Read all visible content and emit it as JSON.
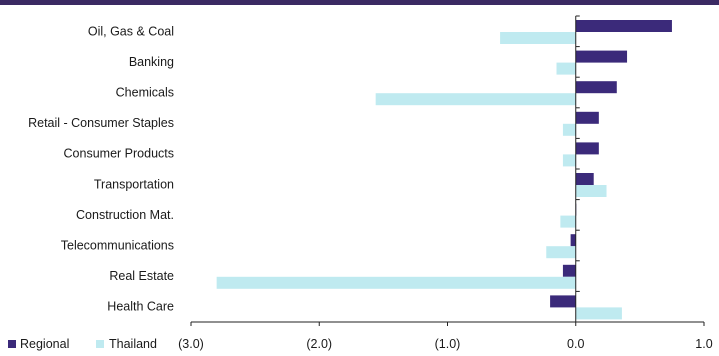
{
  "chart_data": {
    "type": "bar",
    "orientation": "horizontal",
    "categories": [
      "Oil, Gas & Coal",
      "Banking",
      "Chemicals",
      "Retail - Consumer Staples",
      "Consumer Products",
      "Transportation",
      "Construction Mat.",
      "Telecommunications",
      "Real Estate",
      "Health Care"
    ],
    "series": [
      {
        "name": "Regional",
        "color": "#3b2a7a",
        "values": [
          0.75,
          0.4,
          0.32,
          0.18,
          0.18,
          0.14,
          0.0,
          -0.04,
          -0.1,
          -0.2
        ]
      },
      {
        "name": "Thailand",
        "color": "#bfeaf0",
        "values": [
          -0.59,
          -0.15,
          -1.56,
          -0.1,
          -0.1,
          0.24,
          -0.12,
          -0.23,
          -2.8,
          0.36
        ]
      }
    ],
    "x_ticks": [
      "(3.0)",
      "(2.0)",
      "(1.0)",
      "0.0",
      "1.0"
    ],
    "x_tick_values": [
      -3,
      -2,
      -1,
      0,
      1
    ],
    "xlim": [
      -3,
      1
    ],
    "grid": false,
    "legend_position": "bottom-left"
  }
}
